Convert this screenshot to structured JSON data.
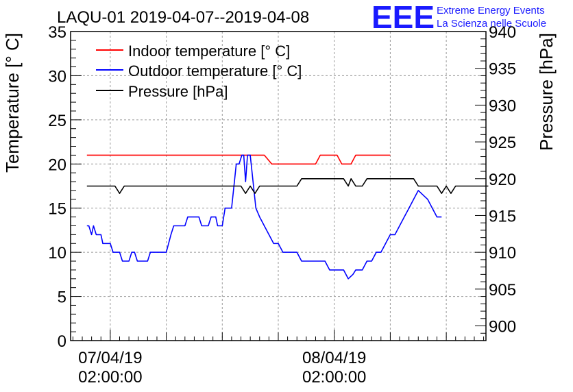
{
  "chart_data": {
    "type": "line",
    "title": "LAQU-01 2019-04-07--2019-04-08",
    "xlabel": "",
    "ylabel": "Temperature [° C]",
    "ylabel_right": "Pressure [hPa]",
    "ylim": [
      0,
      35
    ],
    "ylim_right": [
      898,
      940
    ],
    "xlim_hours": [
      -4.25,
      40.25
    ],
    "y_ticks": [
      "0",
      "5",
      "10",
      "15",
      "20",
      "25",
      "30",
      "35"
    ],
    "y_ticks_right": [
      "900",
      "905",
      "910",
      "915",
      "920",
      "925",
      "930",
      "935",
      "940"
    ],
    "x_tick_hours": [
      0,
      24
    ],
    "x_ticks": [
      {
        "date": "07/04/19",
        "time": "02:00:00"
      },
      {
        "date": "08/04/19",
        "time": "02:00:00"
      }
    ],
    "grid": true,
    "legend_position": "top-left",
    "series": [
      {
        "name": "Indoor temperature [° C]",
        "color": "#ff0000",
        "axis": "left",
        "points": [
          [
            -2.5,
            21
          ],
          [
            16.5,
            21
          ],
          [
            17.3,
            20
          ],
          [
            22,
            20
          ],
          [
            22.5,
            21
          ],
          [
            24.3,
            21
          ],
          [
            24.8,
            20
          ],
          [
            25.8,
            20
          ],
          [
            26.3,
            21
          ],
          [
            30,
            21
          ]
        ]
      },
      {
        "name": "Outdoor temperature [° C]",
        "color": "#0000ff",
        "axis": "left",
        "points": [
          [
            -2.5,
            13
          ],
          [
            -2.3,
            13
          ],
          [
            -2,
            12
          ],
          [
            -1.8,
            13
          ],
          [
            -1.5,
            12
          ],
          [
            -1,
            12
          ],
          [
            -0.8,
            11
          ],
          [
            0,
            11
          ],
          [
            0.3,
            10
          ],
          [
            1,
            10
          ],
          [
            1.3,
            9
          ],
          [
            2,
            9
          ],
          [
            2.3,
            10
          ],
          [
            2.6,
            10
          ],
          [
            2.9,
            9
          ],
          [
            4,
            9
          ],
          [
            4.3,
            10
          ],
          [
            6,
            10
          ],
          [
            6.5,
            12
          ],
          [
            6.8,
            13
          ],
          [
            8,
            13
          ],
          [
            8.3,
            14
          ],
          [
            9.5,
            14
          ],
          [
            9.8,
            13
          ],
          [
            10.5,
            13
          ],
          [
            10.8,
            14
          ],
          [
            11.3,
            14
          ],
          [
            11.5,
            13
          ],
          [
            12,
            13
          ],
          [
            12.3,
            15
          ],
          [
            13,
            15
          ],
          [
            13.3,
            18
          ],
          [
            13.5,
            20
          ],
          [
            13.8,
            20
          ],
          [
            14.1,
            21
          ],
          [
            14.3,
            21
          ],
          [
            14.5,
            18
          ],
          [
            14.7,
            21
          ],
          [
            15,
            21
          ],
          [
            15.3,
            18
          ],
          [
            15.6,
            15
          ],
          [
            16,
            14
          ],
          [
            16.5,
            13
          ],
          [
            17,
            12
          ],
          [
            17.5,
            11
          ],
          [
            18,
            11
          ],
          [
            18.5,
            10
          ],
          [
            20,
            10
          ],
          [
            20.5,
            9
          ],
          [
            23,
            9
          ],
          [
            23.5,
            8
          ],
          [
            25,
            8
          ],
          [
            25.5,
            7
          ],
          [
            26,
            7.5
          ],
          [
            26.3,
            8
          ],
          [
            27,
            8
          ],
          [
            27.5,
            9
          ],
          [
            28,
            9
          ],
          [
            28.5,
            10
          ],
          [
            29,
            10
          ],
          [
            29.5,
            11
          ],
          [
            30,
            12
          ],
          [
            30.5,
            12
          ],
          [
            31,
            13
          ],
          [
            31.5,
            14
          ],
          [
            32,
            15
          ],
          [
            32.5,
            16
          ],
          [
            33,
            17
          ],
          [
            33.5,
            16.5
          ],
          [
            34,
            16
          ],
          [
            34.5,
            15
          ],
          [
            35,
            14
          ],
          [
            35.5,
            14
          ]
        ]
      },
      {
        "name": "Pressure [hPa]",
        "color": "#000000",
        "axis": "right",
        "points": [
          [
            -2.5,
            919
          ],
          [
            0.5,
            919
          ],
          [
            1,
            918
          ],
          [
            1.5,
            919
          ],
          [
            12,
            919
          ],
          [
            14,
            919
          ],
          [
            14.5,
            918
          ],
          [
            15,
            919
          ],
          [
            15.5,
            918
          ],
          [
            16,
            919
          ],
          [
            20,
            919
          ],
          [
            20.5,
            920
          ],
          [
            25,
            920
          ],
          [
            25.5,
            919
          ],
          [
            25.8,
            920
          ],
          [
            26.3,
            919
          ],
          [
            27,
            919
          ],
          [
            27.5,
            920
          ],
          [
            32.5,
            920
          ],
          [
            33,
            919
          ],
          [
            35,
            919
          ],
          [
            35.5,
            918
          ],
          [
            36,
            919
          ],
          [
            36.5,
            918
          ],
          [
            37,
            919
          ],
          [
            40.5,
            919
          ]
        ]
      }
    ]
  },
  "logo": {
    "text": "EEE",
    "line1": "Extreme Energy Events",
    "line2": "La Scienza nelle Scuole",
    "color": "#1a1aff"
  }
}
